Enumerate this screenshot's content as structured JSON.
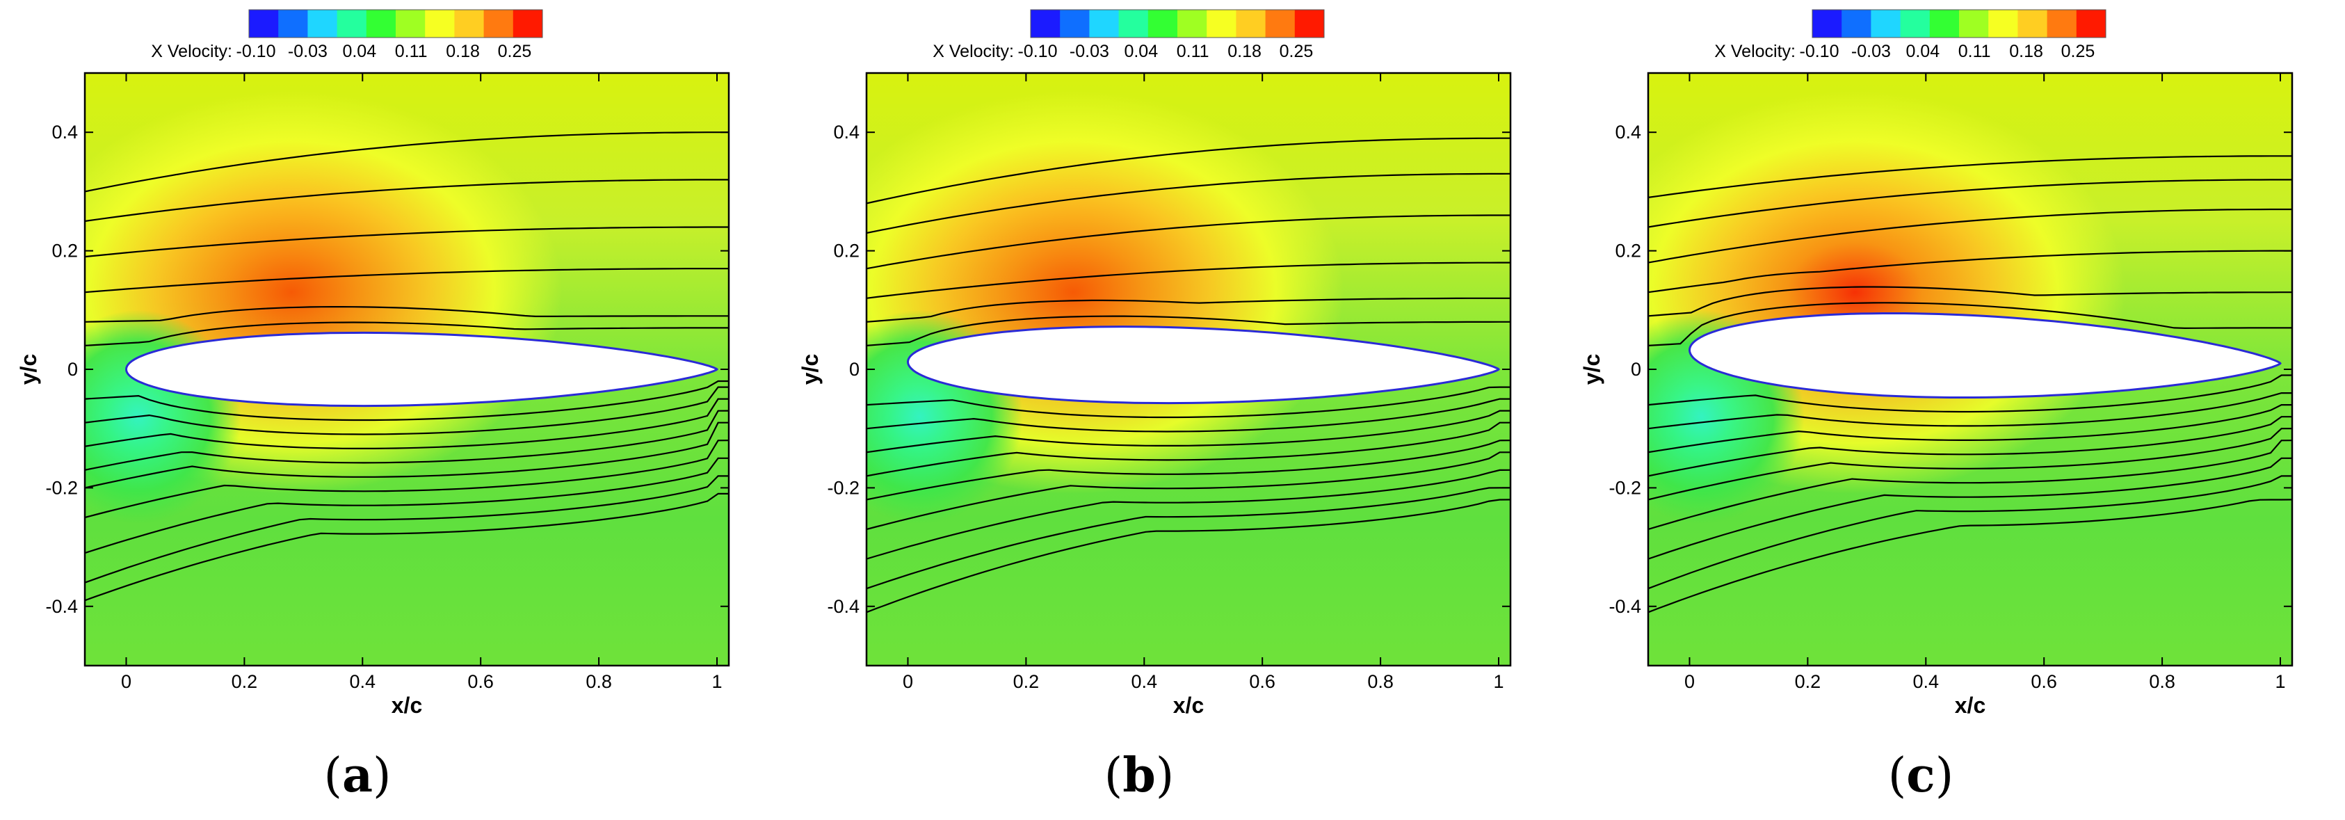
{
  "colorbar": {
    "title": "X Velocity:",
    "ticks": [
      "-0.10",
      "-0.03",
      "0.04",
      "0.11",
      "0.18",
      "0.25"
    ],
    "colors": [
      "#1b1bff",
      "#0f6fff",
      "#1fd6ff",
      "#24ff9e",
      "#33ff33",
      "#9fff22",
      "#f6ff22",
      "#ffce22",
      "#ff7a10",
      "#ff1a00"
    ]
  },
  "chart_data": [
    {
      "type": "contour",
      "panel_label": "(a)",
      "title": "",
      "xlabel": "x/c",
      "ylabel": "y/c",
      "xlim": [
        -0.07,
        1.02
      ],
      "ylim": [
        -0.5,
        0.5
      ],
      "xticks": [
        "0",
        "0.2",
        "0.4",
        "0.6",
        "0.8",
        "1"
      ],
      "yticks": [
        "0.4",
        "0.2",
        "0",
        "-0.2",
        "-0.4"
      ],
      "variable": "X Velocity",
      "color_range": [
        -0.1,
        0.25
      ],
      "airfoil": {
        "upper_max_y": 0.06,
        "lower_min_y": -0.06,
        "max_thickness_x": 0.3,
        "camber_trailing_y": 0.0
      },
      "streamlines_upper_y0": [
        0.04,
        0.08,
        0.13,
        0.19,
        0.25,
        0.3
      ],
      "streamlines_upper_y1": [
        0.07,
        0.09,
        0.17,
        0.24,
        0.32,
        0.4
      ],
      "streamlines_lower_y0": [
        -0.05,
        -0.09,
        -0.13,
        -0.17,
        -0.2,
        -0.25,
        -0.31,
        -0.36,
        -0.39
      ],
      "streamlines_lower_y1": [
        -0.02,
        -0.03,
        -0.05,
        -0.07,
        -0.09,
        -0.12,
        -0.15,
        -0.18,
        -0.21
      ]
    },
    {
      "type": "contour",
      "panel_label": "(b)",
      "title": "",
      "xlabel": "x/c",
      "ylabel": "y/c",
      "xlim": [
        -0.07,
        1.02
      ],
      "ylim": [
        -0.5,
        0.5
      ],
      "xticks": [
        "0",
        "0.2",
        "0.4",
        "0.6",
        "0.8",
        "1"
      ],
      "yticks": [
        "0.4",
        "0.2",
        "0",
        "-0.2",
        "-0.4"
      ],
      "variable": "X Velocity",
      "color_range": [
        -0.1,
        0.25
      ],
      "airfoil": {
        "upper_max_y": 0.075,
        "lower_min_y": -0.05,
        "max_thickness_x": 0.3,
        "camber_trailing_y": 0.0
      },
      "streamlines_upper_y0": [
        0.04,
        0.08,
        0.12,
        0.17,
        0.23,
        0.28
      ],
      "streamlines_upper_y1": [
        0.08,
        0.12,
        0.18,
        0.26,
        0.33,
        0.39
      ],
      "streamlines_lower_y0": [
        -0.06,
        -0.1,
        -0.14,
        -0.18,
        -0.22,
        -0.27,
        -0.32,
        -0.37,
        -0.41
      ],
      "streamlines_lower_y1": [
        -0.03,
        -0.05,
        -0.07,
        -0.09,
        -0.12,
        -0.14,
        -0.17,
        -0.2,
        -0.22
      ]
    },
    {
      "type": "contour",
      "panel_label": "(c)",
      "title": "",
      "xlabel": "x/c",
      "ylabel": "y/c",
      "xlim": [
        -0.07,
        1.02
      ],
      "ylim": [
        -0.5,
        0.5
      ],
      "xticks": [
        "0",
        "0.2",
        "0.4",
        "0.6",
        "0.8",
        "1"
      ],
      "yticks": [
        "0.4",
        "0.2",
        "0",
        "-0.2",
        "-0.4"
      ],
      "variable": "X Velocity",
      "color_range": [
        -0.1,
        0.25
      ],
      "airfoil": {
        "upper_max_y": 0.1,
        "lower_min_y": -0.035,
        "max_thickness_x": 0.28,
        "camber_trailing_y": 0.01
      },
      "streamlines_upper_y0": [
        0.04,
        0.09,
        0.13,
        0.18,
        0.24,
        0.29
      ],
      "streamlines_upper_y1": [
        0.07,
        0.13,
        0.2,
        0.27,
        0.32,
        0.36
      ],
      "streamlines_lower_y0": [
        -0.06,
        -0.1,
        -0.14,
        -0.18,
        -0.22,
        -0.27,
        -0.32,
        -0.37,
        -0.41
      ],
      "streamlines_lower_y1": [
        -0.01,
        -0.04,
        -0.06,
        -0.08,
        -0.1,
        -0.12,
        -0.15,
        -0.18,
        -0.22
      ]
    }
  ]
}
